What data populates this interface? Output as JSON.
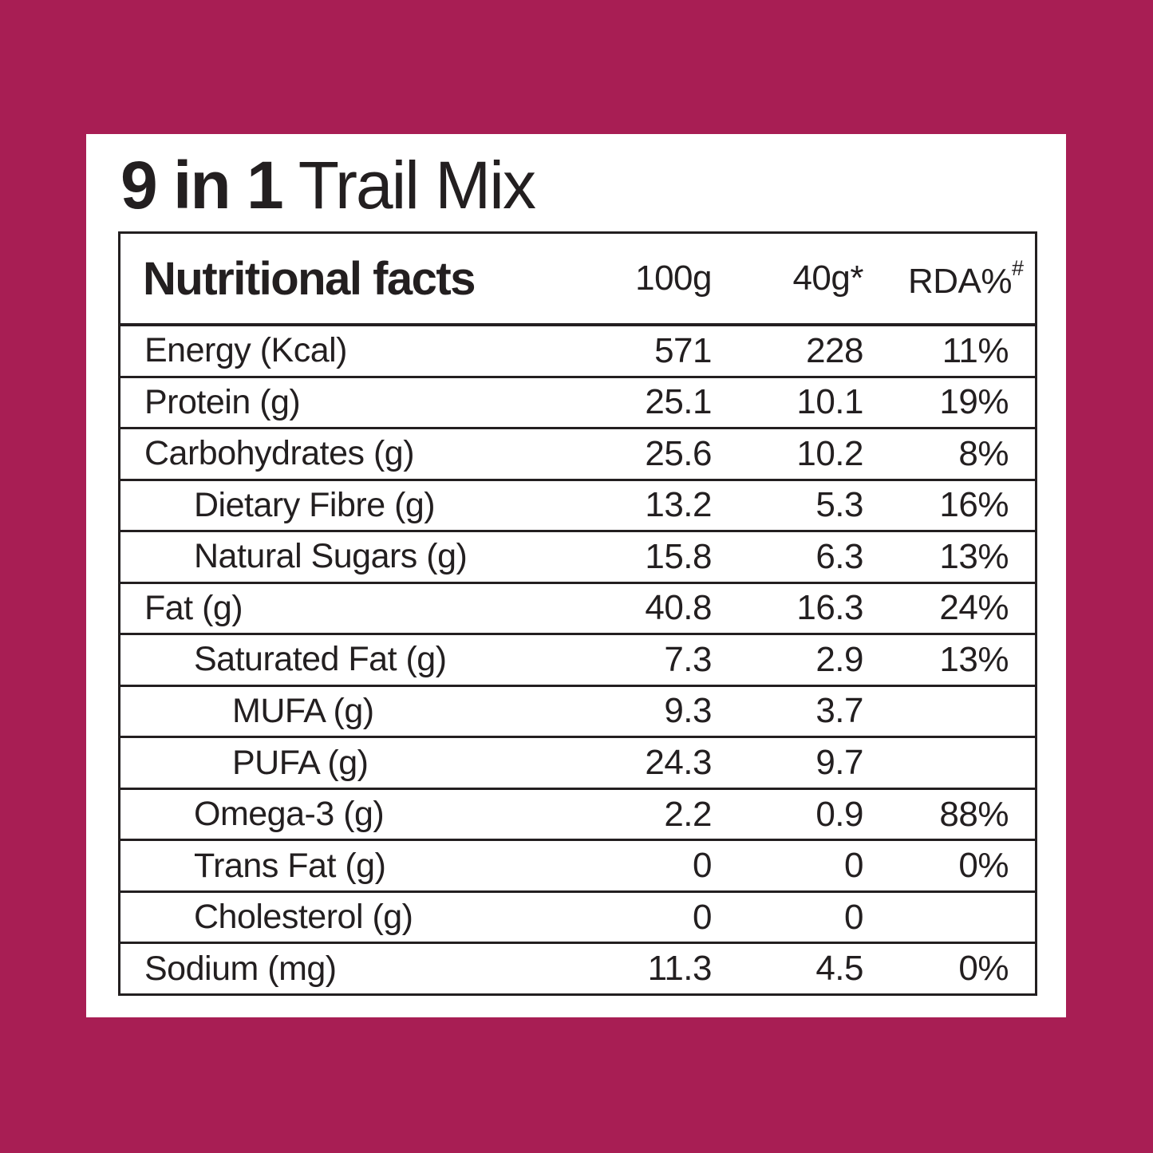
{
  "page": {
    "background_color": "#A81E54",
    "card_color": "#FFFFFF",
    "ink_color": "#231F20"
  },
  "title": {
    "bold": "9 in 1",
    "regular": "Trail Mix"
  },
  "table": {
    "header": {
      "label": "Nutritional facts",
      "col_100g": "100g",
      "col_40g": "40g*",
      "col_rda_base": "RDA%",
      "col_rda_sup": "#"
    },
    "rows": [
      {
        "label": "Energy (Kcal)",
        "indent": 0,
        "per_100g": "571",
        "per_40g": "228",
        "rda": "11%"
      },
      {
        "label": "Protein (g)",
        "indent": 0,
        "per_100g": "25.1",
        "per_40g": "10.1",
        "rda": "19%"
      },
      {
        "label": "Carbohydrates (g)",
        "indent": 0,
        "per_100g": "25.6",
        "per_40g": "10.2",
        "rda": "8%"
      },
      {
        "label": "Dietary Fibre (g)",
        "indent": 1,
        "per_100g": "13.2",
        "per_40g": "5.3",
        "rda": "16%"
      },
      {
        "label": "Natural Sugars (g)",
        "indent": 1,
        "per_100g": "15.8",
        "per_40g": "6.3",
        "rda": "13%"
      },
      {
        "label": "Fat (g)",
        "indent": 0,
        "per_100g": "40.8",
        "per_40g": "16.3",
        "rda": "24%"
      },
      {
        "label": "Saturated Fat (g)",
        "indent": 1,
        "per_100g": "7.3",
        "per_40g": "2.9",
        "rda": "13%"
      },
      {
        "label": "MUFA (g)",
        "indent": 2,
        "per_100g": "9.3",
        "per_40g": "3.7",
        "rda": ""
      },
      {
        "label": "PUFA (g)",
        "indent": 2,
        "per_100g": "24.3",
        "per_40g": "9.7",
        "rda": ""
      },
      {
        "label": "Omega-3 (g)",
        "indent": 1,
        "per_100g": "2.2",
        "per_40g": "0.9",
        "rda": "88%"
      },
      {
        "label": "Trans Fat (g)",
        "indent": 1,
        "per_100g": "0",
        "per_40g": "0",
        "rda": "0%"
      },
      {
        "label": "Cholesterol (g)",
        "indent": 1,
        "per_100g": "0",
        "per_40g": "0",
        "rda": ""
      },
      {
        "label": "Sodium (mg)",
        "indent": 0,
        "per_100g": "11.3",
        "per_40g": "4.5",
        "rda": "0%"
      }
    ]
  }
}
